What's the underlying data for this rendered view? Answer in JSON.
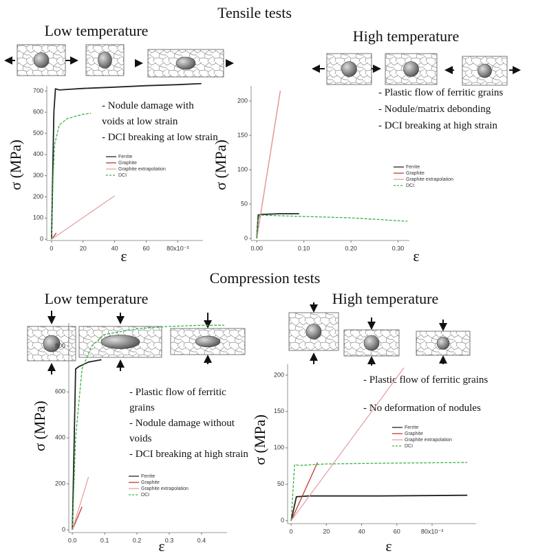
{
  "sections": [
    "Tensile tests",
    "Compression tests"
  ],
  "chart_data": [
    {
      "type": "line",
      "title": "Low temperature",
      "xlabel": "ε",
      "ylabel": "σ (MPa)",
      "annotations": [
        "- Nodule damage with",
        "voids at low strain",
        "- DCI breaking at low strain"
      ],
      "xlim": [
        -3,
        96
      ],
      "ylim": [
        -6,
        724
      ],
      "xticks": [
        0,
        20,
        40,
        60,
        {
          "value": 80,
          "label": "80x10⁻³"
        }
      ],
      "yticks": [
        0,
        100,
        200,
        300,
        400,
        500,
        600,
        700
      ],
      "series": [
        {
          "name": "Ferrite",
          "color": "#222222",
          "style": "solid",
          "x": [
            0,
            1.5,
            2.5,
            5,
            20,
            40,
            60,
            80,
            95
          ],
          "values": [
            0,
            600,
            710,
            705,
            712,
            718,
            725,
            730,
            735
          ]
        },
        {
          "name": "Graphite",
          "color": "#c0392b",
          "style": "solid",
          "x": [
            0,
            3
          ],
          "values": [
            0,
            30
          ]
        },
        {
          "name": "Graphite extrapolation",
          "color": "#e8a0a0",
          "style": "solid",
          "x": [
            0,
            40
          ],
          "values": [
            0,
            205
          ]
        },
        {
          "name": "DCI",
          "color": "#3cb043",
          "style": "dashed",
          "x": [
            0,
            1,
            2,
            5,
            10,
            15,
            20,
            25
          ],
          "values": [
            0,
            300,
            450,
            540,
            570,
            580,
            590,
            595
          ]
        }
      ]
    },
    {
      "type": "line",
      "title": "High temperature",
      "xlabel": "ε",
      "ylabel": "σ (MPa)",
      "annotations": [
        "- Plastic flow of ferritic grains",
        "- Nodule/matrix debonding",
        "- DCI breaking at high strain"
      ],
      "xlim": [
        -0.012,
        0.324
      ],
      "ylim": [
        -3,
        222
      ],
      "xticks": [
        {
          "value": 0,
          "label": "0.00"
        },
        {
          "value": 0.1,
          "label": "0.10"
        },
        {
          "value": 0.2,
          "label": "0.20"
        },
        {
          "value": 0.3,
          "label": "0.30"
        }
      ],
      "yticks": [
        0,
        50,
        100,
        150,
        200
      ],
      "series": [
        {
          "name": "Ferrite",
          "color": "#222222",
          "style": "solid",
          "x": [
            0,
            0.003,
            0.01,
            0.05,
            0.09
          ],
          "values": [
            0,
            34,
            35,
            36,
            36
          ]
        },
        {
          "name": "Graphite",
          "color": "#c0392b",
          "style": "solid",
          "x": [
            0,
            0.05
          ],
          "values": [
            0,
            215
          ]
        },
        {
          "name": "Graphite extrapolation",
          "color": "#e8a0a0",
          "style": "solid",
          "x": [
            0,
            0.05
          ],
          "values": [
            0,
            215
          ]
        },
        {
          "name": "DCI",
          "color": "#3cb043",
          "style": "dashed",
          "x": [
            0,
            0.003,
            0.01,
            0.05,
            0.1,
            0.2,
            0.32
          ],
          "values": [
            0,
            30,
            34,
            33,
            32,
            30,
            25
          ]
        }
      ]
    },
    {
      "type": "line",
      "title": "Low temperature",
      "xlabel": "ε",
      "ylabel": "σ (MPa)",
      "annotations": [
        "- Plastic flow of ferritic",
        "grains",
        "- Nodule damage without",
        "voids",
        "- DCI breaking at high strain"
      ],
      "xlim": [
        -0.011,
        0.479
      ],
      "ylim": [
        -12,
        900
      ],
      "xticks": [
        {
          "value": 0,
          "label": "0.0"
        },
        0.1,
        0.2,
        0.3,
        0.4
      ],
      "yticks": [
        0,
        200,
        400,
        600,
        800
      ],
      "series": [
        {
          "name": "Ferrite",
          "color": "#222222",
          "style": "solid",
          "x": [
            0,
            0.01,
            0.02,
            0.05,
            0.09
          ],
          "values": [
            0,
            700,
            710,
            730,
            740
          ]
        },
        {
          "name": "Graphite",
          "color": "#c0392b",
          "style": "solid",
          "x": [
            0,
            0.03
          ],
          "values": [
            0,
            100
          ]
        },
        {
          "name": "Graphite extrapolation",
          "color": "#e8a0a0",
          "style": "solid",
          "x": [
            0,
            0.05
          ],
          "values": [
            0,
            230
          ]
        },
        {
          "name": "DCI",
          "color": "#3cb043",
          "style": "dashed",
          "x": [
            0,
            0.01,
            0.03,
            0.06,
            0.1,
            0.2,
            0.3,
            0.4,
            0.47
          ],
          "values": [
            0,
            400,
            700,
            800,
            850,
            875,
            885,
            890,
            890
          ]
        }
      ]
    },
    {
      "type": "line",
      "title": "High temperature",
      "xlabel": "ε",
      "ylabel": "σ (MPa)",
      "annotations": [
        "- Plastic flow of ferritic grains",
        "- No deformation of nodules"
      ],
      "xlim": [
        -2,
        105
      ],
      "ylim": [
        -4,
        215
      ],
      "xticks": [
        0,
        20,
        40,
        60,
        {
          "value": 80,
          "label": "80x10⁻³"
        }
      ],
      "yticks": [
        0,
        50,
        100,
        150,
        200
      ],
      "series": [
        {
          "name": "Ferrite",
          "color": "#222222",
          "style": "solid",
          "x": [
            0,
            3,
            10,
            50,
            100
          ],
          "values": [
            0,
            33,
            34,
            34,
            35
          ]
        },
        {
          "name": "Graphite",
          "color": "#c0392b",
          "style": "solid",
          "x": [
            0,
            15
          ],
          "values": [
            0,
            80
          ]
        },
        {
          "name": "Graphite extrapolation",
          "color": "#e8a0a0",
          "style": "solid",
          "x": [
            0,
            64
          ],
          "values": [
            0,
            210
          ]
        },
        {
          "name": "DCI",
          "color": "#3cb043",
          "style": "dashed",
          "x": [
            0,
            2,
            5,
            20,
            50,
            100
          ],
          "values": [
            0,
            77,
            76,
            78,
            79,
            80
          ]
        }
      ]
    }
  ]
}
